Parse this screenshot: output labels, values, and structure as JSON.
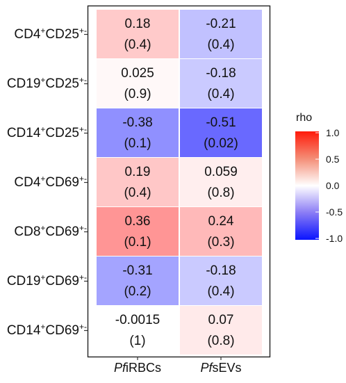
{
  "chart_data": {
    "type": "heatmap",
    "columns": [
      {
        "italic": "Pf",
        "rest": "iRBCs"
      },
      {
        "italic": "Pf",
        "rest": "sEVs"
      }
    ],
    "rows": [
      {
        "parts": [
          "CD4",
          "+",
          "CD25",
          "+-"
        ]
      },
      {
        "parts": [
          "CD19",
          "+",
          "CD25",
          "+-"
        ]
      },
      {
        "parts": [
          "CD14",
          "+",
          "CD25",
          "+-"
        ]
      },
      {
        "parts": [
          "CD4",
          "+",
          "CD69",
          "+-"
        ]
      },
      {
        "parts": [
          "CD8",
          "+",
          "CD69",
          "+-"
        ]
      },
      {
        "parts": [
          "CD19",
          "+",
          "CD69",
          "+-"
        ]
      },
      {
        "parts": [
          "CD14",
          "+",
          "CD69",
          "+-"
        ]
      }
    ],
    "rho": [
      [
        0.18,
        -0.21
      ],
      [
        0.025,
        -0.18
      ],
      [
        -0.38,
        -0.51
      ],
      [
        0.19,
        0.059
      ],
      [
        0.36,
        0.24
      ],
      [
        -0.31,
        -0.18
      ],
      [
        -0.0015,
        0.07
      ]
    ],
    "rho_labels": [
      [
        "0.18",
        "-0.21"
      ],
      [
        "0.025",
        "-0.18"
      ],
      [
        "-0.38",
        "-0.51"
      ],
      [
        "0.19",
        "0.059"
      ],
      [
        "0.36",
        "0.24"
      ],
      [
        "-0.31",
        "-0.18"
      ],
      [
        "-0.0015",
        "0.07"
      ]
    ],
    "p_labels": [
      [
        "(0.4)",
        "(0.4)"
      ],
      [
        "(0.9)",
        "(0.4)"
      ],
      [
        "(0.1)",
        "(0.02)"
      ],
      [
        "(0.4)",
        "(0.8)"
      ],
      [
        "(0.1)",
        "(0.3)"
      ],
      [
        "(0.2)",
        "(0.4)"
      ],
      [
        "(1)",
        "(0.8)"
      ]
    ],
    "legend": {
      "title": "rho",
      "ticks": [
        "1.0",
        "0.5",
        "0.0",
        "-0.5",
        "-1.0"
      ],
      "range": [
        -1,
        1
      ]
    },
    "colors": {
      "low": "#0000ff",
      "mid": "#ffffff",
      "high": "#ff0000"
    }
  }
}
